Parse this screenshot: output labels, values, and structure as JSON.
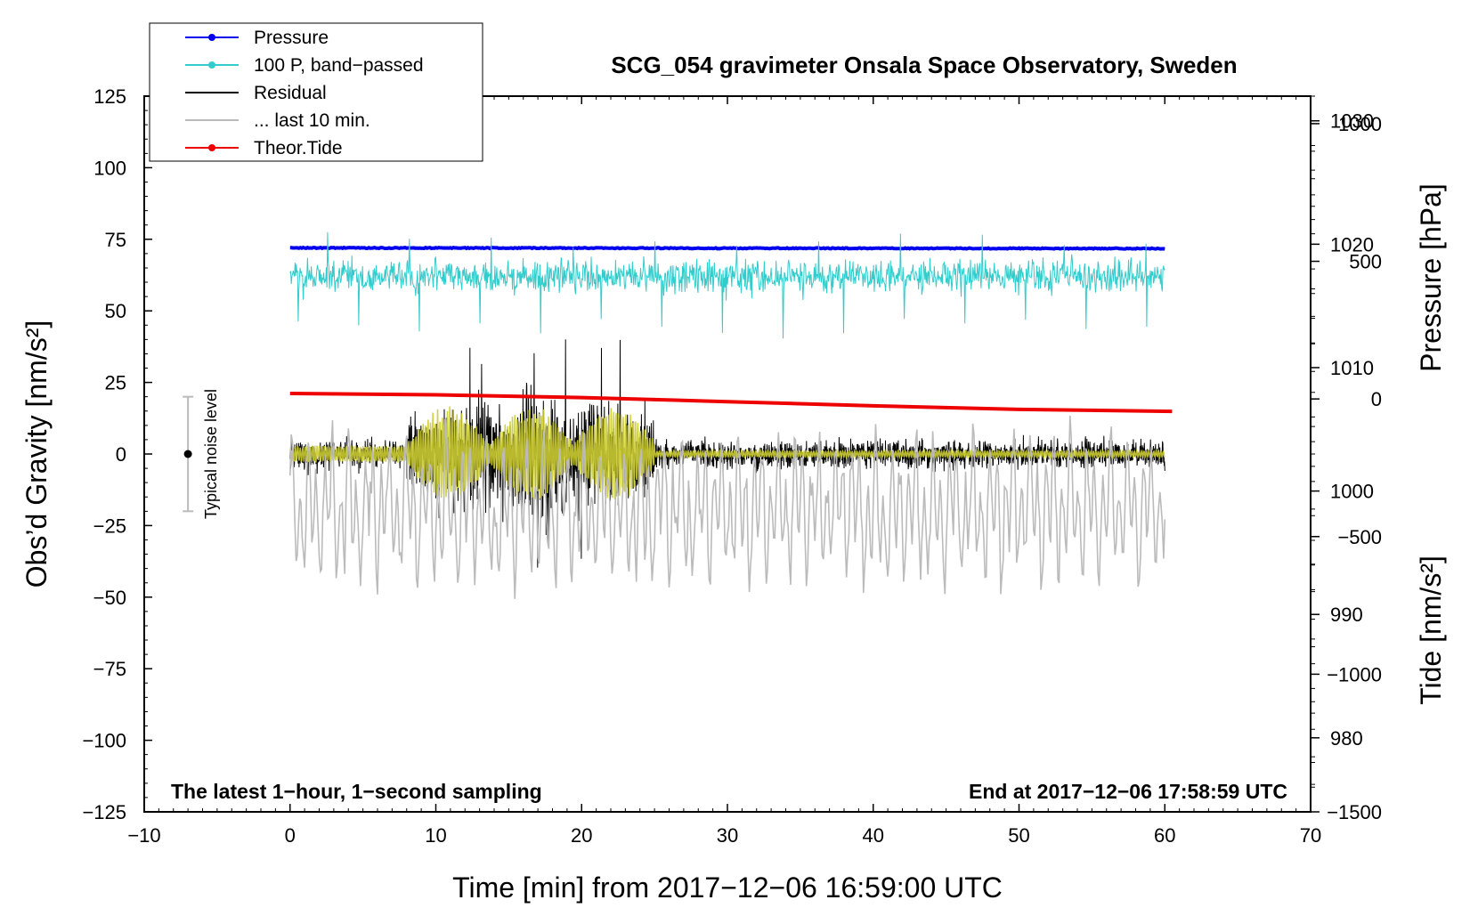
{
  "chart_data": {
    "type": "line",
    "title": "SCG_054 gravimeter Onsala Space Observatory, Sweden",
    "xlabel": "Time [min] from 2017−12−06 16:59:00 UTC",
    "ylabel_left": "Obs’d Gravity [nm/s²]",
    "ylabel_right_top": "Pressure [hPa]",
    "ylabel_right_bottom": "Tide [nm/s²]",
    "xlim": [
      -10,
      70
    ],
    "ylim_left": [
      -125,
      125
    ],
    "pressure_axis_range": [
      974,
      1032
    ],
    "tide_axis_range": [
      -1500,
      1100
    ],
    "x_ticks": [
      "−10",
      "0",
      "10",
      "20",
      "30",
      "40",
      "50",
      "60",
      "70"
    ],
    "y_left_ticks": [
      "−125",
      "−100",
      "−75",
      "−50",
      "−25",
      "0",
      "25",
      "50",
      "75",
      "100",
      "125"
    ],
    "pressure_ticks": [
      "980",
      "990",
      "1000",
      "1010",
      "1020",
      "1030"
    ],
    "tide_ticks": [
      "−1500",
      "−1000",
      "−500",
      "0",
      "500",
      "1000"
    ],
    "x_tick_values": [
      -10,
      0,
      10,
      20,
      30,
      40,
      50,
      60,
      70
    ],
    "y_left_tick_values": [
      -125,
      -100,
      -75,
      -50,
      -25,
      0,
      25,
      50,
      75,
      100,
      125
    ],
    "pressure_tick_values": [
      980,
      990,
      1000,
      1010,
      1020,
      1030
    ],
    "tide_tick_values": [
      -1500,
      -1000,
      -500,
      0,
      500,
      1000
    ],
    "legend": [
      {
        "label": "Pressure",
        "color": "#0000ee",
        "marker": true
      },
      {
        "label": "100 P, band−passed",
        "color": "#33cccc",
        "marker": true
      },
      {
        "label": "Residual",
        "color": "#000000",
        "marker": false
      },
      {
        "label": "... last 10 min.",
        "color": "#bbbbbb",
        "marker": false
      },
      {
        "label": "Theor.Tide",
        "color": "#ee0000",
        "marker": true
      }
    ],
    "legend_position": "top-left",
    "annotations": {
      "bottom_left": "The latest 1−hour, 1−second sampling",
      "bottom_right": "End at 2017−12−06 17:58:59 UTC",
      "noise_label": "Typical noise level"
    },
    "noise_level": {
      "x": -7,
      "center": 0,
      "low": -20,
      "high": 20
    },
    "series": [
      {
        "name": "Pressure",
        "color": "#0000ee",
        "axis": "left",
        "x_range": [
          0,
          60
        ],
        "level": 72,
        "noise_amplitude": 0.3
      },
      {
        "name": "100 P, band−passed",
        "color": "#33cccc",
        "axis": "left",
        "x_range": [
          0,
          60
        ],
        "level": 62,
        "noise_amplitude": 4,
        "spike_min": 40,
        "spike_max": 78
      },
      {
        "name": "Residual",
        "color": "#000000",
        "axis": "left",
        "x_range": [
          0,
          60
        ],
        "level": 0,
        "quiet_amplitude": 10,
        "max_amplitude": 41,
        "min_amplitude": -41,
        "active_window_min": [
          8,
          25
        ]
      },
      {
        "name": "Residual smoothed",
        "color": "#cccc33",
        "axis": "left",
        "x_range": [
          0,
          60
        ],
        "level": 0,
        "max_amplitude": 17,
        "active_window_min": [
          8,
          25
        ]
      },
      {
        "name": "Theor.Tide",
        "color": "#ee0000",
        "axis": "tide",
        "x": [
          0,
          10,
          20,
          30,
          40,
          50,
          60.5
        ],
        "values": [
          20,
          15,
          5,
          -10,
          -25,
          -38,
          -45
        ]
      },
      {
        "name": "... last 10 min.",
        "color": "#bbbbbb",
        "axis": "tide",
        "x_range": [
          0,
          60
        ],
        "level": -400,
        "amplitude": 300
      }
    ]
  }
}
